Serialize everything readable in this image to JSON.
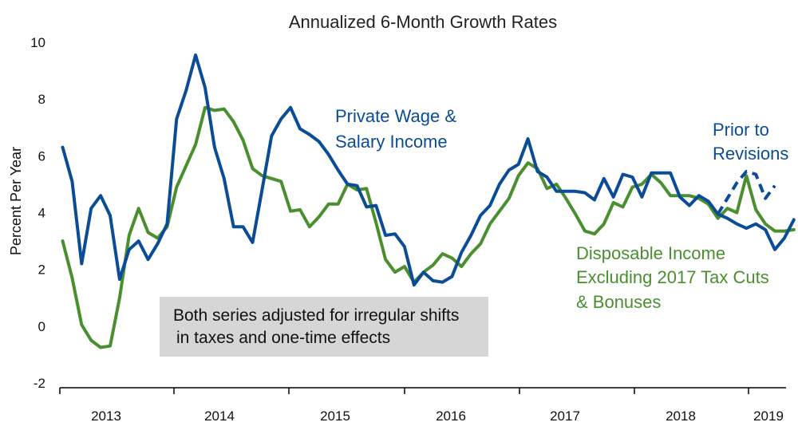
{
  "chart_data": {
    "type": "line",
    "title": "Annualized 6-Month Growth Rates",
    "ylabel": "Percent Per Year",
    "xlabel": "",
    "ylim": [
      -2,
      10
    ],
    "yticks": [
      "10",
      "8",
      "6",
      "4",
      "2",
      "0",
      "-2"
    ],
    "xticks": [
      "2013",
      "2014",
      "2015",
      "2016",
      "2017",
      "2018",
      "2019"
    ],
    "colors": {
      "blue": "#0b4c96",
      "green": "#4a8f2f",
      "note_bg": "#d6d6d6"
    },
    "series": [
      {
        "name": "Private Wage & Salary Income",
        "label_lines": [
          "Private Wage &",
          "Salary Income"
        ],
        "color": "#0b4c96",
        "values": [
          6.3,
          5.1,
          2.2,
          4.15,
          4.6,
          3.9,
          1.65,
          2.7,
          3.0,
          2.35,
          2.9,
          3.6,
          7.3,
          8.3,
          9.55,
          8.4,
          6.3,
          5.2,
          3.5,
          3.5,
          2.95,
          4.8,
          6.7,
          7.3,
          7.7,
          6.95,
          6.75,
          6.5,
          6.05,
          5.5,
          5.0,
          4.95,
          4.2,
          4.25,
          3.2,
          3.25,
          2.8,
          1.45,
          1.9,
          1.6,
          1.55,
          1.75,
          2.6,
          3.2,
          3.9,
          4.25,
          5.0,
          5.5,
          5.7,
          6.6,
          5.45,
          5.25,
          4.75,
          4.75,
          4.75,
          4.7,
          4.45,
          5.2,
          4.55,
          5.35,
          5.25,
          4.55,
          5.4,
          5.4,
          5.4,
          4.55,
          4.25,
          4.6,
          4.4,
          3.95,
          3.8,
          3.6,
          3.45,
          3.6,
          3.4,
          2.7,
          3.1,
          3.75
        ]
      },
      {
        "name": "Disposable Income Excluding 2017 Tax Cuts & Bonuses",
        "label_lines": [
          "Disposable Income",
          "Excluding 2017 Tax Cuts",
          "& Bonuses"
        ],
        "color": "#4a8f2f",
        "values": [
          3.0,
          1.7,
          0.05,
          -0.5,
          -0.75,
          -0.7,
          1.0,
          3.2,
          4.15,
          3.3,
          3.1,
          3.5,
          4.9,
          5.65,
          6.4,
          7.7,
          7.6,
          7.65,
          7.2,
          6.55,
          5.55,
          5.3,
          5.2,
          5.1,
          4.05,
          4.1,
          3.5,
          3.85,
          4.3,
          4.3,
          5.0,
          4.8,
          4.85,
          3.65,
          2.35,
          1.9,
          2.1,
          1.55,
          1.9,
          2.15,
          2.55,
          2.4,
          2.1,
          2.55,
          2.9,
          3.6,
          4.05,
          4.5,
          5.3,
          5.75,
          5.55,
          4.85,
          5.0,
          4.5,
          3.95,
          3.35,
          3.25,
          3.6,
          4.35,
          4.2,
          4.9,
          5.0,
          5.35,
          5.05,
          4.6,
          4.6,
          4.6,
          4.5,
          4.3,
          3.8,
          4.15,
          4.0,
          5.3,
          4.1,
          3.6,
          3.35,
          3.35,
          3.4
        ]
      },
      {
        "name": "Prior to Revisions",
        "label_lines": [
          "Prior to",
          "Revisions"
        ],
        "color": "#0b4c96",
        "dashed": true,
        "start_index": 69,
        "values": [
          3.95,
          4.5,
          5.05,
          5.45,
          5.35,
          4.5,
          4.95
        ]
      }
    ],
    "note_lines": [
      "Both series adjusted for irregular shifts",
      "in taxes and one-time effects"
    ]
  }
}
